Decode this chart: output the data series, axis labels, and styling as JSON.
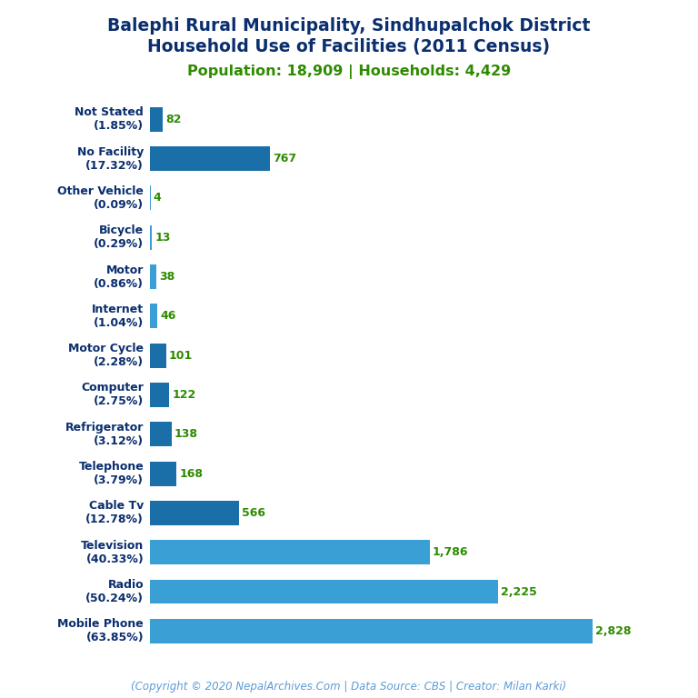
{
  "title_line1": "Balephi Rural Municipality, Sindhupalchok District",
  "title_line2": "Household Use of Facilities (2011 Census)",
  "subtitle": "Population: 18,909 | Households: 4,429",
  "footer": "(Copyright © 2020 NepalArchives.Com | Data Source: CBS | Creator: Milan Karki)",
  "categories": [
    "Not Stated\n(1.85%)",
    "No Facility\n(17.32%)",
    "Other Vehicle\n(0.09%)",
    "Bicycle\n(0.29%)",
    "Motor\n(0.86%)",
    "Internet\n(1.04%)",
    "Motor Cycle\n(2.28%)",
    "Computer\n(2.75%)",
    "Refrigerator\n(3.12%)",
    "Telephone\n(3.79%)",
    "Cable Tv\n(12.78%)",
    "Television\n(40.33%)",
    "Radio\n(50.24%)",
    "Mobile Phone\n(63.85%)"
  ],
  "values": [
    82,
    767,
    4,
    13,
    38,
    46,
    101,
    122,
    138,
    168,
    566,
    1786,
    2225,
    2828
  ],
  "bar_colors": [
    "#2878b8",
    "#1a6fa8",
    "#3a9fd4",
    "#3a9fd4",
    "#3a9fd4",
    "#3a9fd4",
    "#2878b8",
    "#2878b8",
    "#2878b8",
    "#2878b8",
    "#1a6fa8",
    "#3a9fd4",
    "#3a9fd4",
    "#3a9fd4"
  ],
  "title_color": "#0a2e6e",
  "subtitle_color": "#2e8b00",
  "footer_color": "#5b9bd5",
  "label_color": "#2e8b00",
  "ylabel_color": "#0a2e6e",
  "background_color": "#ffffff",
  "xlim": [
    0,
    3100
  ],
  "title_fontsize": 13.5,
  "subtitle_fontsize": 11.5,
  "label_fontsize": 9,
  "tick_fontsize": 9,
  "footer_fontsize": 8.5
}
